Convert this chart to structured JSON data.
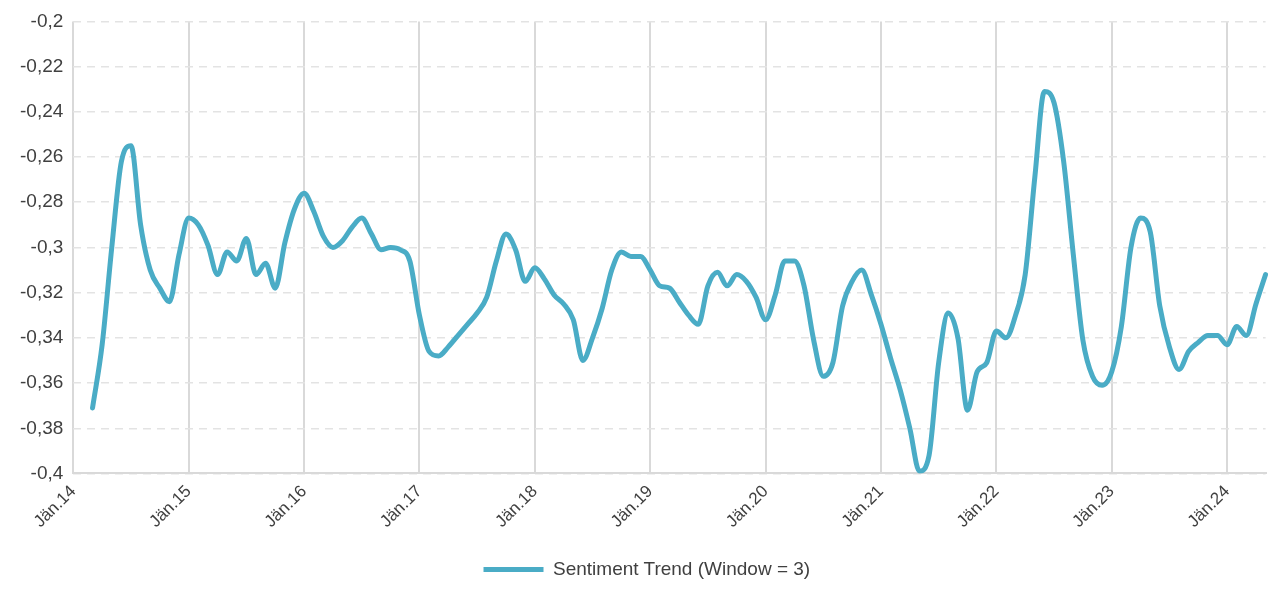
{
  "chart_data": {
    "type": "line",
    "categories": [
      "Jän.14",
      null,
      null,
      null,
      null,
      null,
      null,
      null,
      null,
      null,
      null,
      null,
      "Jän.15",
      null,
      null,
      null,
      null,
      null,
      null,
      null,
      null,
      null,
      null,
      null,
      "Jän.16",
      null,
      null,
      null,
      null,
      null,
      null,
      null,
      null,
      null,
      null,
      null,
      "Jän.17",
      null,
      null,
      null,
      null,
      null,
      null,
      null,
      null,
      null,
      null,
      null,
      "Jän.18",
      null,
      null,
      null,
      null,
      null,
      null,
      null,
      null,
      null,
      null,
      null,
      "Jän.19",
      null,
      null,
      null,
      null,
      null,
      null,
      null,
      null,
      null,
      null,
      null,
      "Jän.20",
      null,
      null,
      null,
      null,
      null,
      null,
      null,
      null,
      null,
      null,
      null,
      "Jän.21",
      null,
      null,
      null,
      null,
      null,
      null,
      null,
      null,
      null,
      null,
      null,
      "Jän.22",
      null,
      null,
      null,
      null,
      null,
      null,
      null,
      null,
      null,
      null,
      null,
      "Jän.23",
      null,
      null,
      null,
      null,
      null,
      null,
      null,
      null,
      null,
      null,
      null,
      "Jän.24",
      null,
      null,
      null,
      null
    ],
    "series": [
      {
        "name": "Sentiment Trend (Window = 3)",
        "color": "#4aacc6",
        "values": [
          null,
          null,
          -0.371,
          -0.343,
          -0.3,
          -0.262,
          -0.255,
          -0.29,
          -0.31,
          -0.318,
          -0.324,
          -0.303,
          -0.287,
          -0.29,
          -0.299,
          -0.312,
          -0.302,
          -0.306,
          -0.296,
          -0.312,
          -0.307,
          -0.318,
          -0.298,
          -0.283,
          -0.276,
          -0.284,
          -0.295,
          -0.3,
          -0.297,
          -0.291,
          -0.287,
          -0.294,
          -0.301,
          -0.3,
          -0.301,
          -0.306,
          -0.33,
          -0.346,
          -0.348,
          -0.344,
          -0.339,
          -0.334,
          -0.329,
          -0.322,
          -0.306,
          -0.294,
          -0.301,
          -0.315,
          -0.309,
          -0.314,
          -0.321,
          -0.325,
          -0.332,
          -0.35,
          -0.34,
          -0.327,
          -0.31,
          -0.302,
          -0.304,
          -0.304,
          -0.31,
          -0.317,
          -0.318,
          -0.324,
          -0.33,
          -0.334,
          -0.317,
          -0.311,
          -0.317,
          -0.312,
          -0.315,
          -0.322,
          -0.332,
          -0.321,
          -0.306,
          -0.306,
          -0.317,
          -0.341,
          -0.357,
          -0.351,
          -0.326,
          -0.315,
          -0.31,
          -0.321,
          -0.334,
          -0.349,
          -0.363,
          -0.38,
          -0.399,
          -0.392,
          -0.351,
          -0.329,
          -0.34,
          -0.372,
          -0.355,
          -0.351,
          -0.337,
          -0.34,
          -0.33,
          -0.312,
          -0.269,
          -0.231,
          -0.236,
          -0.262,
          -0.303,
          -0.341,
          -0.357,
          -0.361,
          -0.355,
          -0.335,
          -0.3,
          -0.287,
          -0.293,
          -0.326,
          -0.344,
          -0.354,
          -0.346,
          -0.342,
          -0.339,
          -0.339,
          -0.343,
          -0.335,
          -0.339,
          -0.325,
          -0.312
        ]
      }
    ],
    "ylim": [
      -0.4,
      -0.2
    ],
    "yticks": [
      {
        "value": -0.4,
        "label": "-0,4"
      },
      {
        "value": -0.38,
        "label": "-0,38"
      },
      {
        "value": -0.36,
        "label": "-0,36"
      },
      {
        "value": -0.34,
        "label": "-0,34"
      },
      {
        "value": -0.32,
        "label": "-0,32"
      },
      {
        "value": -0.3,
        "label": "-0,3"
      },
      {
        "value": -0.28,
        "label": "-0,28"
      },
      {
        "value": -0.26,
        "label": "-0,26"
      },
      {
        "value": -0.24,
        "label": "-0,24"
      },
      {
        "value": -0.22,
        "label": "-0,22"
      },
      {
        "value": -0.2,
        "label": "-0,2"
      }
    ],
    "grid": true,
    "legend": "bottom",
    "marker": "none",
    "line_style": "solid"
  }
}
